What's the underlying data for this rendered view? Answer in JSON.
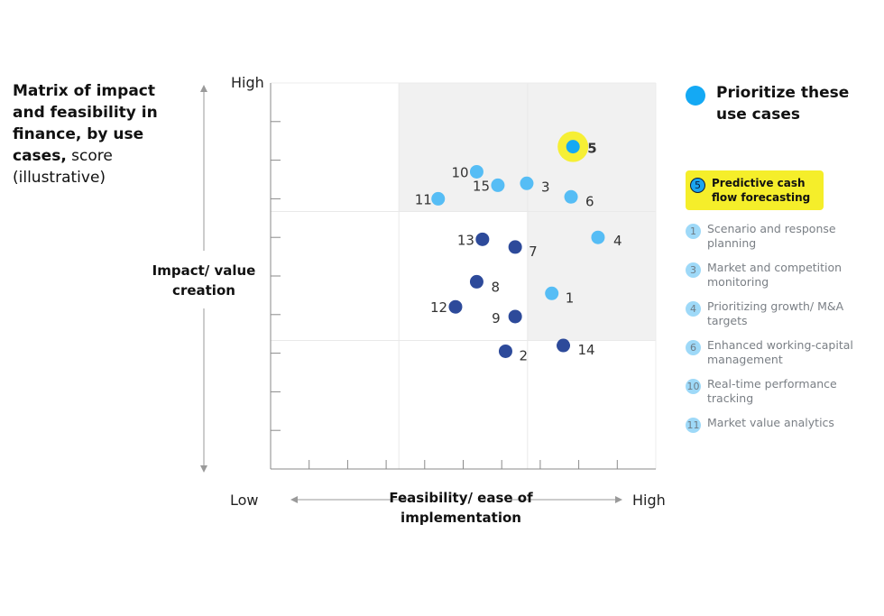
{
  "title": {
    "bold": "Matrix of impact and feasibility in finance, by use cases,",
    "normal": " score (illustrative)"
  },
  "colors": {
    "priority": "#14a9f4",
    "priority_light": "#56bdf5",
    "other": "#2d4a9a",
    "highlight": "#f5ee2a",
    "shade": "#f1f1f1"
  },
  "chart_data": {
    "type": "scatter",
    "title": "Matrix of impact and feasibility in finance, by use cases, score (illustrative)",
    "xlabel": "Feasibility/ ease of implementation",
    "ylabel": "Impact/ value creation",
    "x_low": "Low",
    "x_high": "High",
    "y_high": "High",
    "xlim": [
      0,
      10
    ],
    "ylim": [
      0,
      10
    ],
    "grid_lines_x": [
      3.33,
      6.67
    ],
    "grid_lines_y": [
      3.33,
      6.67
    ],
    "shaded_region": "upper-right",
    "points": [
      {
        "id": "5",
        "x": 7.85,
        "y": 8.35,
        "group": "highlight"
      },
      {
        "id": "10",
        "x": 5.35,
        "y": 7.7,
        "group": "priority"
      },
      {
        "id": "15",
        "x": 5.9,
        "y": 7.35,
        "group": "priority"
      },
      {
        "id": "3",
        "x": 6.65,
        "y": 7.4,
        "group": "priority"
      },
      {
        "id": "11",
        "x": 4.35,
        "y": 7.0,
        "group": "priority"
      },
      {
        "id": "6",
        "x": 7.8,
        "y": 7.05,
        "group": "priority"
      },
      {
        "id": "4",
        "x": 8.5,
        "y": 6.0,
        "group": "priority"
      },
      {
        "id": "13",
        "x": 5.5,
        "y": 5.95,
        "group": "other"
      },
      {
        "id": "7",
        "x": 6.35,
        "y": 5.75,
        "group": "other"
      },
      {
        "id": "8",
        "x": 5.35,
        "y": 4.85,
        "group": "other"
      },
      {
        "id": "1",
        "x": 7.3,
        "y": 4.55,
        "group": "priority"
      },
      {
        "id": "12",
        "x": 4.8,
        "y": 4.2,
        "group": "other"
      },
      {
        "id": "9",
        "x": 6.35,
        "y": 3.95,
        "group": "other"
      },
      {
        "id": "14",
        "x": 7.6,
        "y": 3.2,
        "group": "other"
      },
      {
        "id": "2",
        "x": 6.1,
        "y": 3.05,
        "group": "other"
      }
    ]
  },
  "legend": {
    "header": "Prioritize these use cases",
    "items": [
      {
        "num": "5",
        "text": "Predictive cash flow forecasting",
        "highlight": true
      },
      {
        "num": "1",
        "text": "Scenario and response planning",
        "highlight": false
      },
      {
        "num": "3",
        "text": "Market and competition monitoring",
        "highlight": false
      },
      {
        "num": "4",
        "text": "Prioritizing growth/ M&A targets",
        "highlight": false
      },
      {
        "num": "6",
        "text": "Enhanced working-capital management",
        "highlight": false
      },
      {
        "num": "10",
        "text": "Real-time performance tracking",
        "highlight": false
      },
      {
        "num": "11",
        "text": "Market value analytics",
        "highlight": false
      }
    ]
  }
}
